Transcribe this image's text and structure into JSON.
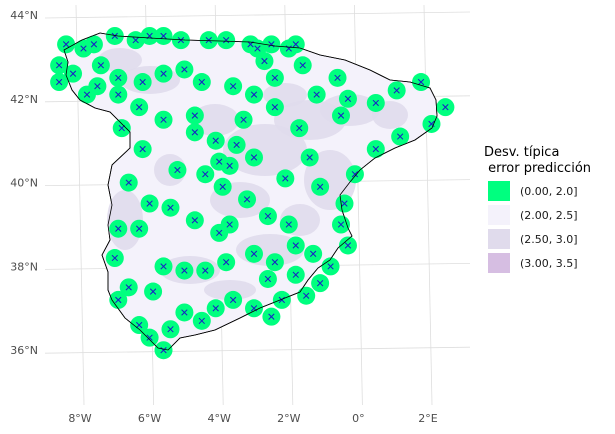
{
  "chart_data": {
    "type": "map",
    "title": "",
    "xlabel": "",
    "ylabel": "",
    "longitude_ticks": [
      {
        "value": -8,
        "label": "8°W"
      },
      {
        "value": -6,
        "label": "6°W"
      },
      {
        "value": -4,
        "label": "4°W"
      },
      {
        "value": -2,
        "label": "2°W"
      },
      {
        "value": 0,
        "label": "0°"
      },
      {
        "value": 2,
        "label": "2°E"
      }
    ],
    "latitude_ticks": [
      {
        "value": 44,
        "label": "44°N"
      },
      {
        "value": 42,
        "label": "42°N"
      },
      {
        "value": 40,
        "label": "40°N"
      },
      {
        "value": 38,
        "label": "38°N"
      },
      {
        "value": 36,
        "label": "36°N"
      }
    ],
    "grid": true,
    "legend": {
      "title_line1": "Desv. típica",
      "title_line2": " error predicción",
      "position": "right",
      "items": [
        {
          "label": "(0.00, 2.0]",
          "color": "#00FF7F"
        },
        {
          "label": "(2.00, 2.5]",
          "color": "#F4F2FB"
        },
        {
          "label": "(2.50, 3.0]",
          "color": "#E0DBEC"
        },
        {
          "label": "(3.00, 3.5]",
          "color": "#D6BEE2"
        }
      ]
    },
    "colors": {
      "station_marker": "#1a1ac8",
      "outline": "#000000",
      "grid": "#dedede"
    },
    "stations": [
      [
        -8.4,
        43.3
      ],
      [
        -7.9,
        43.2
      ],
      [
        -7.6,
        43.3
      ],
      [
        -7.0,
        43.5
      ],
      [
        -6.0,
        43.5
      ],
      [
        -5.6,
        43.5
      ],
      [
        -5.1,
        43.4
      ],
      [
        -4.3,
        43.4
      ],
      [
        -3.8,
        43.4
      ],
      [
        -3.1,
        43.3
      ],
      [
        -2.9,
        43.2
      ],
      [
        -2.5,
        43.3
      ],
      [
        -2.0,
        43.2
      ],
      [
        -1.8,
        43.3
      ],
      [
        -6.4,
        43.4
      ],
      [
        -8.6,
        42.8
      ],
      [
        -8.6,
        42.4
      ],
      [
        -8.2,
        42.6
      ],
      [
        -7.8,
        42.1
      ],
      [
        -7.5,
        42.3
      ],
      [
        -6.9,
        42.5
      ],
      [
        -6.2,
        42.4
      ],
      [
        -5.6,
        42.6
      ],
      [
        -5.0,
        42.7
      ],
      [
        -4.5,
        42.4
      ],
      [
        -3.6,
        42.3
      ],
      [
        -3.0,
        42.1
      ],
      [
        -2.7,
        42.9
      ],
      [
        -2.4,
        42.5
      ],
      [
        -1.6,
        42.8
      ],
      [
        -1.2,
        42.1
      ],
      [
        -0.6,
        42.5
      ],
      [
        -0.3,
        42.0
      ],
      [
        0.5,
        41.9
      ],
      [
        1.1,
        42.2
      ],
      [
        1.8,
        42.4
      ],
      [
        2.5,
        41.8
      ],
      [
        2.1,
        41.4
      ],
      [
        1.2,
        41.1
      ],
      [
        0.5,
        40.8
      ],
      [
        -0.1,
        40.2
      ],
      [
        -0.4,
        39.5
      ],
      [
        -0.5,
        39.0
      ],
      [
        -0.3,
        38.5
      ],
      [
        -0.8,
        38.0
      ],
      [
        -1.1,
        37.6
      ],
      [
        -1.5,
        37.3
      ],
      [
        -1.8,
        37.8
      ],
      [
        -2.2,
        37.2
      ],
      [
        -2.5,
        36.8
      ],
      [
        -3.0,
        37.0
      ],
      [
        -3.6,
        37.2
      ],
      [
        -4.1,
        37.0
      ],
      [
        -4.5,
        36.7
      ],
      [
        -5.0,
        36.9
      ],
      [
        -5.4,
        36.5
      ],
      [
        -5.6,
        36.0
      ],
      [
        -6.0,
        36.3
      ],
      [
        -6.3,
        36.6
      ],
      [
        -6.9,
        37.2
      ],
      [
        -6.6,
        37.5
      ],
      [
        -5.9,
        37.4
      ],
      [
        -5.0,
        37.9
      ],
      [
        -4.4,
        37.9
      ],
      [
        -3.8,
        38.1
      ],
      [
        -3.0,
        38.3
      ],
      [
        -2.4,
        38.1
      ],
      [
        -1.8,
        38.5
      ],
      [
        -2.0,
        39.0
      ],
      [
        -2.6,
        39.2
      ],
      [
        -3.2,
        39.6
      ],
      [
        -3.9,
        39.9
      ],
      [
        -4.4,
        40.2
      ],
      [
        -4.0,
        40.5
      ],
      [
        -3.7,
        40.4
      ],
      [
        -3.5,
        40.9
      ],
      [
        -4.1,
        41.0
      ],
      [
        -4.7,
        41.6
      ],
      [
        -5.6,
        41.5
      ],
      [
        -6.3,
        41.8
      ],
      [
        -6.8,
        41.3
      ],
      [
        -6.2,
        40.8
      ],
      [
        -6.6,
        40.0
      ],
      [
        -6.0,
        39.5
      ],
      [
        -5.4,
        39.4
      ],
      [
        -6.3,
        38.9
      ],
      [
        -6.9,
        38.9
      ],
      [
        -5.6,
        38.0
      ],
      [
        -7.0,
        38.2
      ],
      [
        -4.0,
        38.8
      ],
      [
        -1.1,
        39.9
      ],
      [
        -0.5,
        41.6
      ],
      [
        -1.7,
        41.3
      ],
      [
        -2.4,
        41.8
      ],
      [
        -1.4,
        40.6
      ],
      [
        -2.1,
        40.1
      ],
      [
        -3.0,
        40.6
      ],
      [
        -3.3,
        41.5
      ],
      [
        -2.6,
        37.7
      ],
      [
        -1.3,
        38.3
      ],
      [
        -4.7,
        39.1
      ],
      [
        -5.2,
        40.3
      ],
      [
        -6.9,
        42.1
      ],
      [
        -7.4,
        42.8
      ],
      [
        -4.7,
        41.2
      ],
      [
        -3.7,
        39.0
      ]
    ]
  }
}
